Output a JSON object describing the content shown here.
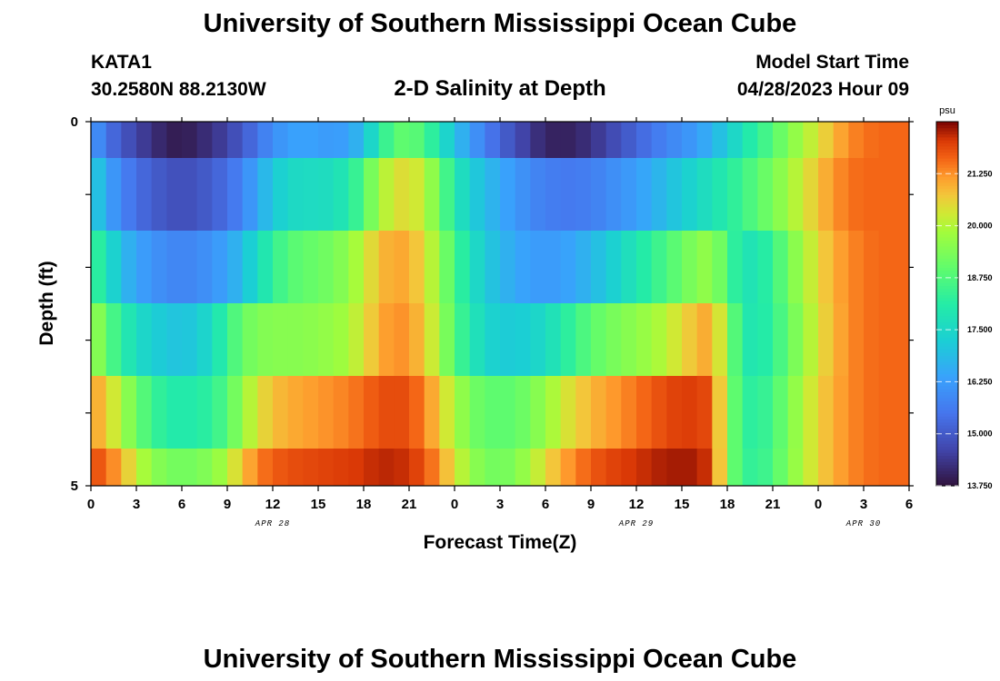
{
  "chart_data": {
    "type": "heatmap",
    "title": "University of Southern Mississippi Ocean Cube",
    "station": "KATA1",
    "location": "30.2580N  88.2130W",
    "subtitle": "2-D Salinity at Depth",
    "model_label": "Model Start Time",
    "model_time": "04/28/2023 Hour 09",
    "xlabel": "Forecast Time(Z)",
    "ylabel": "Depth (ft)",
    "x_tick_labels": [
      "0",
      "3",
      "6",
      "9",
      "12",
      "15",
      "18",
      "21",
      "0",
      "3",
      "6",
      "9",
      "12",
      "15",
      "18",
      "21",
      "0",
      "3",
      "6"
    ],
    "date_labels": [
      {
        "label": "APR 28",
        "hours": 12
      },
      {
        "label": "APR 29",
        "hours": 36
      },
      {
        "label": "APR 30",
        "hours": 51
      }
    ],
    "x_range_hours": [
      0,
      54
    ],
    "y_tick_labels": [
      "0",
      "5"
    ],
    "y_range": [
      0,
      5
    ],
    "colorbar": {
      "unit": "psu",
      "range": [
        13.75,
        22.5
      ],
      "tick_values": [
        13.75,
        15.0,
        16.25,
        17.5,
        18.75,
        20.0,
        21.25
      ],
      "tick_labels": [
        "13.750",
        "15.000",
        "16.250",
        "17.500",
        "18.750",
        "20.000",
        "21.250"
      ]
    },
    "layers": [
      {
        "depth": "0.0-0.5 ft",
        "x": [
          0,
          1,
          2,
          3,
          4,
          5,
          6,
          7,
          8,
          9,
          10,
          11,
          12,
          13,
          14,
          15,
          16,
          17,
          18,
          19,
          20,
          21,
          22,
          23,
          24,
          25,
          26,
          27,
          28,
          29,
          30,
          31,
          32,
          33,
          34,
          35,
          36,
          37,
          38,
          39,
          40,
          41,
          42,
          43,
          44,
          45,
          46,
          47,
          48,
          49,
          50,
          51,
          52,
          53,
          54
        ],
        "values": [
          16.3,
          15.5,
          15.0,
          14.6,
          14.3,
          14.0,
          13.9,
          14.1,
          14.3,
          14.6,
          15.0,
          15.5,
          16.0,
          16.3,
          16.4,
          16.3,
          16.2,
          16.4,
          16.9,
          18.0,
          18.9,
          19.0,
          18.7,
          17.8,
          17.0,
          16.3,
          15.7,
          15.2,
          14.8,
          14.4,
          14.1,
          14.0,
          14.1,
          14.3,
          14.6,
          14.9,
          15.2,
          15.5,
          15.8,
          16.0,
          16.3,
          16.7,
          17.2,
          17.8,
          18.3,
          18.8,
          19.4,
          19.9,
          20.4,
          20.9,
          21.3,
          21.5,
          21.6,
          21.6,
          21.6
        ]
      },
      {
        "depth": "0.5-1.5 ft",
        "x": [
          0,
          1,
          2,
          3,
          4,
          5,
          6,
          7,
          8,
          9,
          10,
          11,
          12,
          13,
          14,
          15,
          16,
          17,
          18,
          19,
          20,
          21,
          22,
          23,
          24,
          25,
          26,
          27,
          28,
          29,
          30,
          31,
          32,
          33,
          34,
          35,
          36,
          37,
          38,
          39,
          40,
          41,
          42,
          43,
          44,
          45,
          46,
          47,
          48,
          49,
          50,
          51,
          52,
          53,
          54
        ],
        "values": [
          17.4,
          16.5,
          15.8,
          15.4,
          15.1,
          14.9,
          14.8,
          14.9,
          15.1,
          15.4,
          15.8,
          16.5,
          17.1,
          17.5,
          17.6,
          17.6,
          17.7,
          18.0,
          18.8,
          19.8,
          20.4,
          20.5,
          20.1,
          19.1,
          18.0,
          17.3,
          16.9,
          16.5,
          16.2,
          15.9,
          15.7,
          15.6,
          15.6,
          15.7,
          15.9,
          16.1,
          16.3,
          16.6,
          16.9,
          17.2,
          17.5,
          17.8,
          18.1,
          18.5,
          18.9,
          19.3,
          19.8,
          20.3,
          20.8,
          21.2,
          21.5,
          21.6,
          21.6,
          21.6,
          21.6
        ]
      },
      {
        "depth": "1.5-2.5 ft",
        "x": [
          0,
          1,
          2,
          3,
          4,
          5,
          6,
          7,
          8,
          9,
          10,
          11,
          12,
          13,
          14,
          15,
          16,
          17,
          18,
          19,
          20,
          21,
          22,
          23,
          24,
          25,
          26,
          27,
          28,
          29,
          30,
          31,
          32,
          33,
          34,
          35,
          36,
          37,
          38,
          39,
          40,
          41,
          42,
          43,
          44,
          45,
          46,
          47,
          48,
          49,
          50,
          51,
          52,
          53,
          54
        ],
        "values": [
          18.6,
          17.8,
          16.9,
          16.4,
          16.1,
          15.9,
          15.8,
          15.9,
          16.1,
          16.4,
          16.9,
          17.6,
          18.3,
          18.8,
          19.0,
          19.1,
          19.3,
          19.6,
          20.2,
          20.8,
          21.1,
          21.0,
          20.5,
          19.6,
          18.6,
          17.8,
          17.2,
          16.8,
          16.5,
          16.3,
          16.2,
          16.3,
          16.5,
          16.8,
          17.1,
          17.5,
          17.9,
          18.3,
          18.7,
          19.1,
          19.5,
          19.7,
          18.7,
          17.8,
          17.9,
          18.4,
          19.2,
          19.9,
          20.5,
          21.0,
          21.3,
          21.5,
          21.6,
          21.6,
          21.6
        ]
      },
      {
        "depth": "2.5-3.5 ft",
        "x": [
          0,
          1,
          2,
          3,
          4,
          5,
          6,
          7,
          8,
          9,
          10,
          11,
          12,
          13,
          14,
          15,
          16,
          17,
          18,
          19,
          20,
          21,
          22,
          23,
          24,
          25,
          26,
          27,
          28,
          29,
          30,
          31,
          32,
          33,
          34,
          35,
          36,
          37,
          38,
          39,
          40,
          41,
          42,
          43,
          44,
          45,
          46,
          47,
          48,
          49,
          50,
          51,
          52,
          53,
          54
        ],
        "values": [
          19.9,
          19.0,
          18.2,
          17.6,
          17.3,
          17.1,
          17.0,
          17.2,
          17.6,
          18.4,
          19.1,
          19.4,
          19.5,
          19.5,
          19.5,
          19.6,
          19.7,
          19.9,
          20.4,
          21.0,
          21.3,
          21.2,
          20.7,
          19.8,
          18.8,
          18.0,
          17.5,
          17.2,
          17.2,
          17.3,
          17.6,
          18.0,
          18.5,
          18.9,
          19.2,
          19.4,
          19.6,
          19.8,
          20.1,
          20.5,
          20.9,
          21.1,
          19.6,
          18.0,
          17.9,
          18.3,
          19.0,
          19.7,
          20.4,
          20.9,
          21.3,
          21.5,
          21.6,
          21.6,
          21.6
        ]
      },
      {
        "depth": "3.5-4.5 ft",
        "x": [
          0,
          1,
          2,
          3,
          4,
          5,
          6,
          7,
          8,
          9,
          10,
          11,
          12,
          13,
          14,
          15,
          16,
          17,
          18,
          19,
          20,
          21,
          22,
          23,
          24,
          25,
          26,
          27,
          28,
          29,
          30,
          31,
          32,
          33,
          34,
          35,
          36,
          37,
          38,
          39,
          40,
          41,
          42,
          43,
          44,
          45,
          46,
          47,
          48,
          49,
          50,
          51,
          52,
          53,
          54
        ],
        "values": [
          21.2,
          20.7,
          19.9,
          19.1,
          18.5,
          18.1,
          18.0,
          18.1,
          18.3,
          18.8,
          19.7,
          20.4,
          20.8,
          21.0,
          21.1,
          21.2,
          21.3,
          21.4,
          21.6,
          21.8,
          21.9,
          21.8,
          21.4,
          20.7,
          19.9,
          19.3,
          19.0,
          18.9,
          19.0,
          19.3,
          19.7,
          20.2,
          20.6,
          20.9,
          21.1,
          21.3,
          21.5,
          21.7,
          21.9,
          22.0,
          22.0,
          21.8,
          19.6,
          18.3,
          18.2,
          18.6,
          19.3,
          20.0,
          20.6,
          21.0,
          21.3,
          21.5,
          21.6,
          21.6,
          21.6
        ]
      },
      {
        "depth": "4.5-5.0 ft",
        "x": [
          0,
          1,
          2,
          3,
          4,
          5,
          6,
          7,
          8,
          9,
          10,
          11,
          12,
          13,
          14,
          15,
          16,
          17,
          18,
          19,
          20,
          21,
          22,
          23,
          24,
          25,
          26,
          27,
          28,
          29,
          30,
          31,
          32,
          33,
          34,
          35,
          36,
          37,
          38,
          39,
          40,
          41,
          42,
          43,
          44,
          45,
          46,
          47,
          48,
          49,
          50,
          51,
          52,
          53,
          54
        ],
        "values": [
          21.9,
          21.6,
          21.0,
          20.2,
          19.6,
          19.3,
          19.2,
          19.3,
          19.5,
          20.0,
          20.8,
          21.4,
          21.7,
          21.8,
          21.9,
          21.9,
          22.0,
          22.0,
          22.1,
          22.2,
          22.2,
          22.1,
          21.8,
          21.2,
          20.4,
          19.7,
          19.3,
          19.2,
          19.4,
          19.9,
          20.5,
          21.0,
          21.4,
          21.7,
          21.9,
          22.0,
          22.1,
          22.2,
          22.3,
          22.3,
          22.3,
          22.0,
          19.5,
          18.4,
          18.3,
          18.7,
          19.4,
          20.0,
          20.6,
          21.0,
          21.3,
          21.5,
          21.6,
          21.6,
          21.6
        ]
      }
    ]
  }
}
